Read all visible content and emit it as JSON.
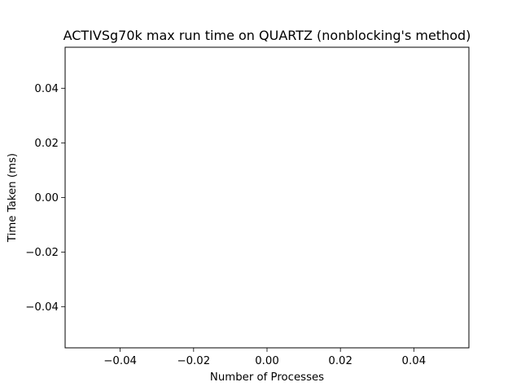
{
  "chart_data": {
    "type": "line",
    "title": "ACTIVSg70k max run time on QUARTZ (nonblocking's method)",
    "xlabel": "Number of Processes",
    "ylabel": "Time Taken (ms)",
    "xlim": [
      -0.055,
      0.055
    ],
    "ylim": [
      -0.055,
      0.055
    ],
    "xticks": [
      -0.04,
      -0.02,
      0.0,
      0.02,
      0.04
    ],
    "yticks": [
      -0.04,
      -0.02,
      0.0,
      0.02,
      0.04
    ],
    "xtick_labels": [
      "−0.04",
      "−0.02",
      "0.00",
      "0.02",
      "0.04"
    ],
    "ytick_labels": [
      "−0.04",
      "−0.02",
      "0.00",
      "0.02",
      "0.04"
    ],
    "grid": false,
    "series": [
      {
        "x": [],
        "y": []
      }
    ]
  }
}
